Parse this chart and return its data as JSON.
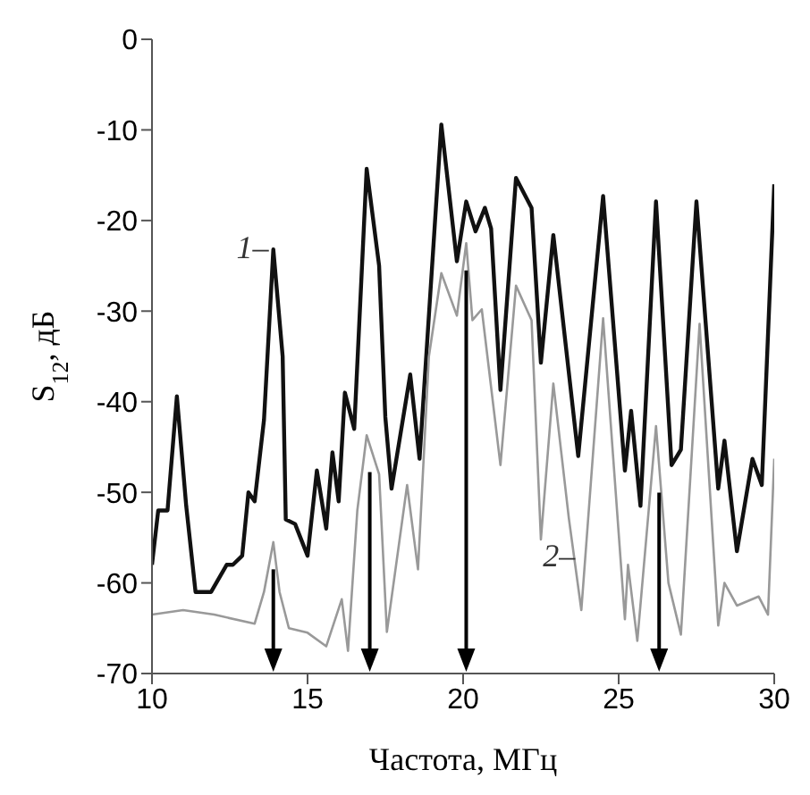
{
  "chart_data": {
    "type": "line",
    "xlabel": "Частота, МГц",
    "ylabel": "S$_{12}$, дБ",
    "xlim": [
      10,
      30
    ],
    "xticks": [
      10,
      15,
      20,
      25,
      30
    ],
    "ylim": [
      -70,
      0
    ],
    "yticks": [
      0,
      -10,
      -20,
      -30,
      -40,
      -50,
      -60,
      -70
    ],
    "marker": "none",
    "line_style": "solid",
    "series": [
      {
        "color": "#111111",
        "x": [
          10,
          10.2,
          10.5,
          10.8,
          11.1,
          11.4,
          11.9,
          12.4,
          12.6,
          12.9,
          13.1,
          13.3,
          13.6,
          13.9,
          14.2,
          14.3,
          14.6,
          15,
          15.3,
          15.6,
          15.8,
          16,
          16.2,
          16.5,
          16.9,
          17.3,
          17.5,
          17.7,
          18.3,
          18.6,
          19.3,
          19.8,
          20.1,
          20.4,
          20.7,
          20.9,
          21.2,
          21.7,
          22.2,
          22.5,
          22.9,
          23.7,
          24.5,
          25.2,
          25.4,
          25.7,
          26.2,
          26.7,
          27,
          27.5,
          28.2,
          28.4,
          28.8,
          29.3,
          29.6,
          30
        ],
        "values": [
          -58,
          -52,
          -52,
          -39.4,
          -51.5,
          -61,
          -61,
          -58,
          -58,
          -57,
          -50,
          -51,
          -42,
          -23.2,
          -35,
          -53,
          -53.5,
          -57,
          -47.6,
          -54,
          -45.6,
          -51,
          -39,
          -43,
          -14.3,
          -25,
          -41.7,
          -49.6,
          -37,
          -46.3,
          -9.4,
          -24.5,
          -17.9,
          -21.2,
          -18.6,
          -20.9,
          -38.7,
          -15.3,
          -18.6,
          -35.7,
          -21.6,
          -46,
          -17.3,
          -47.6,
          -41,
          -51.5,
          -17.9,
          -47,
          -45.3,
          -17.9,
          -49.6,
          -44.3,
          -56.5,
          -46.3,
          -49.2,
          -16
        ]
      },
      {
        "color": "#999999",
        "x": [
          10,
          11,
          12,
          13.3,
          13.6,
          13.9,
          14.1,
          14.4,
          15,
          15.6,
          16.1,
          16.3,
          16.6,
          16.9,
          17.3,
          17.55,
          18.2,
          18.55,
          18.9,
          19.3,
          19.8,
          20.1,
          20.3,
          20.6,
          21.2,
          21.7,
          22.2,
          22.5,
          22.9,
          23.4,
          23.8,
          24.5,
          25.2,
          25.3,
          25.6,
          26.2,
          26.6,
          27,
          27.6,
          28.2,
          28.4,
          28.8,
          29.5,
          29.8,
          30
        ],
        "values": [
          -63.5,
          -63,
          -63.5,
          -64.5,
          -61,
          -55.5,
          -61,
          -65,
          -65.5,
          -67,
          -61.8,
          -67.5,
          -52,
          -43.7,
          -48,
          -65.4,
          -49.2,
          -58.5,
          -35,
          -25.8,
          -30.5,
          -22.5,
          -31,
          -29.8,
          -47,
          -27.2,
          -31,
          -55.2,
          -38,
          -52.9,
          -63,
          -30.8,
          -64,
          -58,
          -66.4,
          -42.7,
          -60,
          -65.7,
          -31.4,
          -64.7,
          -60,
          -62.5,
          -61.5,
          -63.5,
          -46.3
        ]
      }
    ],
    "ref_lines": [
      {
        "axis": "x",
        "value": 13.9,
        "color": "#000000"
      },
      {
        "axis": "x",
        "value": 17,
        "color": "#000000"
      },
      {
        "axis": "x",
        "value": 20.1,
        "color": "#000000"
      },
      {
        "axis": "x",
        "value": 26.3,
        "color": "#000000"
      }
    ],
    "annotations": [
      {
        "text": "1–",
        "x": 13.75,
        "y": -23
      },
      {
        "text": "2–",
        "x": 23.6,
        "y": -57
      }
    ]
  }
}
